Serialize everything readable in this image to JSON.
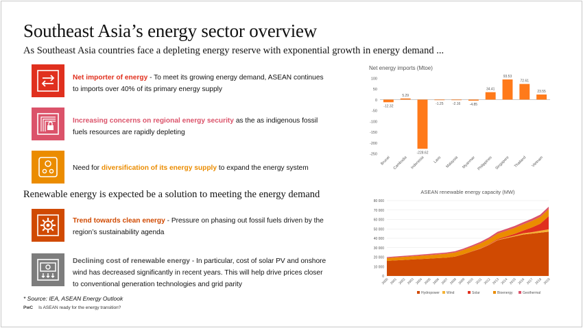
{
  "title": "Southeast Asia’s energy sector overview",
  "subtitle": "As Southeast Asia countries face a depleting energy reserve with exponential growth in energy demand ...",
  "section2_heading": "Renewable energy is expected be a solution to meeting the energy demand",
  "items": [
    {
      "highlight": "Net importer of energy",
      "sep": " - ",
      "text": "To meet its growing energy demand, ASEAN continues to imports over 40% of its primary energy supply",
      "icon": "arrows-exchange-icon",
      "color": "#e0301e"
    },
    {
      "highlight": "Increasing concerns on regional energy security",
      "sep": " ",
      "text": "as the as indigenous fossil fuels resources are rapidly depleting",
      "icon": "lock-security-icon",
      "color": "#db536a"
    },
    {
      "prefix": "Need for ",
      "highlight": "diversification of its energy supply",
      "sep": " ",
      "text": "to expand the energy system",
      "icon": "controls-icon",
      "color": "#eb8c00"
    },
    {
      "highlight": "Trend towards clean energy",
      "sep": " - ",
      "text": "Pressure on phasing out fossil fuels driven by the region’s sustainability agenda",
      "icon": "gear-cog-icon",
      "color": "#d04a02"
    },
    {
      "highlight": "Declining cost of renewable energy",
      "sep": " - ",
      "text": "In particular, cost of solar PV and onshore wind has decreased significantly in recent years. This will help drive prices closer to conventional generation technologies and grid parity",
      "icon": "money-down-icon",
      "color": "#7d7d7d"
    }
  ],
  "source": "* Source: IEA, ASEAN Energy Outlook",
  "footer": {
    "brand": "PwC",
    "text": "Is ASEAN ready for the energy transition?"
  },
  "chart_data": [
    {
      "type": "bar",
      "title": "Net energy imports (Mtoe)",
      "categories": [
        "Brunei",
        "Cambodia",
        "Indonesia",
        "Laos",
        "Malaysia",
        "Myanmar",
        "Philippines",
        "Singapore",
        "Thailand",
        "Vietnam"
      ],
      "values": [
        -12.32,
        5.29,
        -228.62,
        -1.25,
        -2.16,
        -4.85,
        34.41,
        93.53,
        72.61,
        23.55
      ],
      "value_labels": [
        "-12.32",
        "5.29",
        "-228.62",
        "-1.25",
        "-2.16",
        "-4.85",
        "34.41",
        "93.53",
        "72.61",
        "23.55"
      ],
      "ylim": [
        -250,
        100
      ],
      "yticks": [
        100,
        50,
        0,
        -50,
        -100,
        -150,
        -200,
        -250
      ],
      "color": "#ff7a1a"
    },
    {
      "type": "area",
      "stacked": true,
      "title": "ASEAN renewable energy capacity (MW)",
      "x": [
        "2000",
        "2001",
        "2002",
        "2003",
        "2004",
        "2005",
        "2006",
        "2007",
        "2008",
        "2009",
        "2010",
        "2011",
        "2012",
        "2013",
        "2014",
        "2015",
        "2016",
        "2017",
        "2018",
        "2019"
      ],
      "ylim": [
        0,
        80000
      ],
      "yticks": [
        0,
        10000,
        20000,
        30000,
        40000,
        50000,
        60000,
        70000,
        80000
      ],
      "ytick_labels": [
        "0",
        "10 000",
        "20 000",
        "30 000",
        "40 000",
        "50 000",
        "60 000",
        "70 000",
        "80 000"
      ],
      "series": [
        {
          "name": "Hydropower",
          "color": "#d04a02",
          "values": [
            16000,
            16500,
            17000,
            17500,
            18000,
            18500,
            19000,
            19500,
            20500,
            23000,
            26000,
            29000,
            33000,
            38000,
            40000,
            42000,
            44000,
            45000,
            46000,
            47000
          ]
        },
        {
          "name": "Wind",
          "color": "#f5b335",
          "values": [
            0,
            0,
            0,
            0,
            0,
            0,
            0,
            0,
            0,
            0,
            0,
            200,
            300,
            500,
            700,
            900,
            1200,
            1500,
            2000,
            2500
          ]
        },
        {
          "name": "Solar",
          "color": "#e0301e",
          "values": [
            0,
            0,
            0,
            0,
            0,
            0,
            0,
            0,
            50,
            100,
            200,
            300,
            500,
            800,
            1200,
            1800,
            3000,
            5000,
            7500,
            14000
          ]
        },
        {
          "name": "Bioenergy",
          "color": "#eb8c00",
          "values": [
            3000,
            3200,
            3300,
            3400,
            3500,
            3700,
            3900,
            4100,
            4300,
            4500,
            4800,
            5100,
            5400,
            5700,
            6000,
            6300,
            6600,
            6900,
            7200,
            7500
          ]
        },
        {
          "name": "Geothermal",
          "color": "#db536a",
          "values": [
            1000,
            1050,
            1100,
            1150,
            1200,
            1250,
            1300,
            1350,
            1400,
            1500,
            1600,
            1700,
            1800,
            1900,
            2000,
            2100,
            2200,
            2300,
            2400,
            2500
          ]
        }
      ]
    }
  ]
}
